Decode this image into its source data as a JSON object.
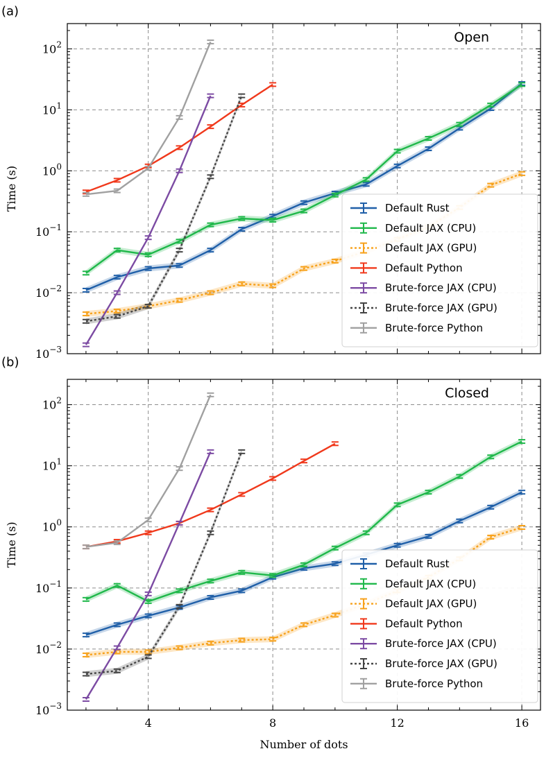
{
  "figure": {
    "xlabel": "Number of dots",
    "ylabel": "Time (s)"
  },
  "legend": [
    {
      "label": "Default Rust",
      "color": "#1f5fa8",
      "dash": "",
      "band": true
    },
    {
      "label": "Default JAX (CPU)",
      "color": "#1fb84a",
      "dash": "",
      "band": true
    },
    {
      "label": "Default JAX (GPU)",
      "color": "#f7a11a",
      "dash": "3,3",
      "band": true
    },
    {
      "label": "Default Python",
      "color": "#f0391c",
      "dash": "",
      "band": false
    },
    {
      "label": "Brute-force JAX (CPU)",
      "color": "#7c4ba3",
      "dash": "",
      "band": false
    },
    {
      "label": "Brute-force JAX (GPU)",
      "color": "#444444",
      "dash": "3,3",
      "band": true
    },
    {
      "label": "Brute-force Python",
      "color": "#a0a0a0",
      "dash": "",
      "band": false
    }
  ],
  "chart_data": [
    {
      "type": "line",
      "panel": "(a)",
      "title": "Open",
      "xlabel": "",
      "ylabel": "Time (s)",
      "yscale": "log",
      "xlim": [
        1.4,
        16.6
      ],
      "ylim": [
        0.001,
        260
      ],
      "xticks": [
        4,
        8,
        12,
        16
      ],
      "yticks": [
        0.001,
        0.01,
        0.1,
        1,
        10,
        100
      ],
      "ytick_labels": [
        [
          "10",
          "−3"
        ],
        [
          "10",
          "−2"
        ],
        [
          "10",
          "−1"
        ],
        [
          "10",
          "0"
        ],
        [
          "10",
          "1"
        ],
        [
          "10",
          "2"
        ]
      ],
      "grid": true,
      "legend_position": "lower-right",
      "series": [
        {
          "name": "Default Rust",
          "x": [
            2,
            3,
            4,
            5,
            6,
            7,
            8,
            9,
            10,
            11,
            12,
            13,
            14,
            15,
            16
          ],
          "y": [
            0.011,
            0.018,
            0.025,
            0.028,
            0.05,
            0.11,
            0.18,
            0.3,
            0.43,
            0.6,
            1.2,
            2.3,
            5.0,
            10.5,
            27.0
          ]
        },
        {
          "name": "Default JAX (CPU)",
          "x": [
            2,
            3,
            4,
            5,
            6,
            7,
            8,
            9,
            10,
            11,
            12,
            13,
            14,
            15,
            16
          ],
          "y": [
            0.021,
            0.05,
            0.042,
            0.07,
            0.13,
            0.165,
            0.155,
            0.22,
            0.4,
            0.72,
            2.1,
            3.4,
            5.8,
            12.0,
            26.0
          ]
        },
        {
          "name": "Default JAX (GPU)",
          "x": [
            2,
            3,
            4,
            5,
            6,
            7,
            8,
            9,
            10,
            11,
            12,
            13,
            14,
            15,
            16
          ],
          "y": [
            0.0045,
            0.005,
            0.006,
            0.0075,
            0.01,
            0.014,
            0.013,
            0.025,
            0.033,
            0.048,
            0.075,
            0.12,
            0.25,
            0.58,
            0.9
          ]
        },
        {
          "name": "Default Python",
          "x": [
            2,
            3,
            4,
            5,
            6,
            7,
            8
          ],
          "y": [
            0.45,
            0.7,
            1.2,
            2.4,
            5.3,
            12.0,
            26.0
          ]
        },
        {
          "name": "Brute-force JAX (CPU)",
          "x": [
            2,
            3,
            4,
            5,
            6
          ],
          "y": [
            0.0014,
            0.01,
            0.08,
            1.0,
            17.0
          ]
        },
        {
          "name": "Brute-force JAX (GPU)",
          "x": [
            2,
            3,
            4,
            5,
            6,
            7
          ],
          "y": [
            0.0034,
            0.0041,
            0.006,
            0.05,
            0.8,
            17.0
          ]
        },
        {
          "name": "Brute-force Python",
          "x": [
            2,
            3,
            4,
            5,
            6
          ],
          "y": [
            0.41,
            0.47,
            1.1,
            7.5,
            130.0
          ]
        }
      ]
    },
    {
      "type": "line",
      "panel": "(b)",
      "title": "Closed",
      "xlabel": "Number of dots",
      "ylabel": "Time (s)",
      "yscale": "log",
      "xlim": [
        1.4,
        16.6
      ],
      "ylim": [
        0.001,
        260
      ],
      "xticks": [
        4,
        8,
        12,
        16
      ],
      "yticks": [
        0.001,
        0.01,
        0.1,
        1,
        10,
        100
      ],
      "ytick_labels": [
        [
          "10",
          "−3"
        ],
        [
          "10",
          "−2"
        ],
        [
          "10",
          "−1"
        ],
        [
          "10",
          "0"
        ],
        [
          "10",
          "1"
        ],
        [
          "10",
          "2"
        ]
      ],
      "grid": true,
      "legend_position": "lower-right",
      "series": [
        {
          "name": "Default Rust",
          "x": [
            2,
            3,
            4,
            5,
            6,
            7,
            8,
            9,
            10,
            11,
            12,
            13,
            14,
            15,
            16
          ],
          "y": [
            0.017,
            0.025,
            0.035,
            0.048,
            0.07,
            0.09,
            0.15,
            0.21,
            0.25,
            0.35,
            0.5,
            0.7,
            1.25,
            2.1,
            3.7
          ]
        },
        {
          "name": "Default JAX (CPU)",
          "x": [
            2,
            3,
            4,
            5,
            6,
            7,
            8,
            9,
            10,
            11,
            12,
            13,
            14,
            15,
            16
          ],
          "y": [
            0.065,
            0.11,
            0.06,
            0.09,
            0.13,
            0.18,
            0.16,
            0.24,
            0.45,
            0.8,
            2.3,
            3.7,
            6.7,
            14.0,
            25.0
          ]
        },
        {
          "name": "Default JAX (GPU)",
          "x": [
            2,
            3,
            4,
            5,
            6,
            7,
            8,
            9,
            10,
            11,
            12,
            13,
            14,
            15,
            16
          ],
          "y": [
            0.008,
            0.009,
            0.009,
            0.0105,
            0.0125,
            0.014,
            0.0145,
            0.025,
            0.036,
            0.055,
            0.09,
            0.15,
            0.3,
            0.68,
            0.98
          ]
        },
        {
          "name": "Default Python",
          "x": [
            2,
            3,
            4,
            5,
            6,
            7,
            8,
            9,
            10
          ],
          "y": [
            0.47,
            0.58,
            0.8,
            1.15,
            1.9,
            3.4,
            6.2,
            12.0,
            23.0
          ]
        },
        {
          "name": "Brute-force JAX (CPU)",
          "x": [
            2,
            3,
            4,
            5,
            6
          ],
          "y": [
            0.0015,
            0.0105,
            0.08,
            1.15,
            17.0
          ]
        },
        {
          "name": "Brute-force JAX (GPU)",
          "x": [
            2,
            3,
            4,
            5,
            6,
            7
          ],
          "y": [
            0.0039,
            0.0044,
            0.0075,
            0.05,
            0.8,
            17.0
          ]
        },
        {
          "name": "Brute-force Python",
          "x": [
            2,
            3,
            4,
            5,
            6
          ],
          "y": [
            0.47,
            0.55,
            1.3,
            9.0,
            145.0
          ]
        }
      ]
    }
  ]
}
